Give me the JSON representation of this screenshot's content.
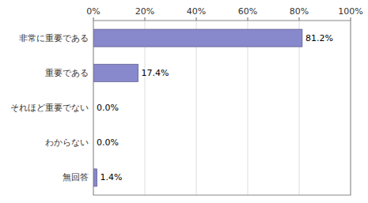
{
  "chart_data": {
    "type": "bar",
    "orientation": "horizontal",
    "categories": [
      "非常に重要である",
      "重要である",
      "それほど重要でない",
      "わからない",
      "無回答"
    ],
    "values": [
      81.2,
      17.4,
      0.0,
      0.0,
      1.4
    ],
    "value_labels": [
      "81.2%",
      "17.4%",
      "0.0%",
      "0.0%",
      "1.4%"
    ],
    "data_labels": true,
    "color": "#8888cc",
    "xlim": [
      0,
      100
    ],
    "xticks": [
      {
        "value": 0,
        "label": "0%"
      },
      {
        "value": 20,
        "label": "20%"
      },
      {
        "value": 40,
        "label": "40%"
      },
      {
        "value": 60,
        "label": "60%"
      },
      {
        "value": 80,
        "label": "80%"
      },
      {
        "value": 100,
        "label": "100%"
      }
    ],
    "grid": true
  }
}
